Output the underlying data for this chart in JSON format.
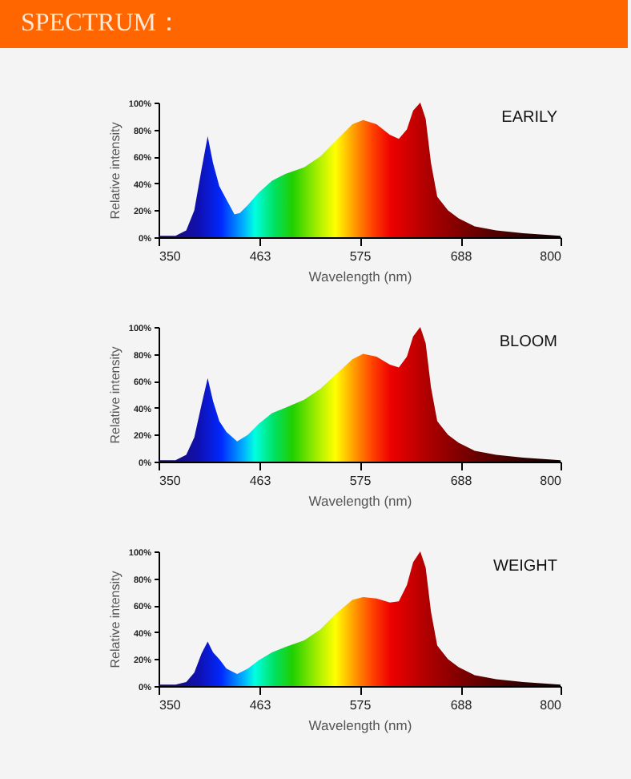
{
  "chart_data": [
    {
      "type": "area",
      "title": "SPECTRUM：",
      "xlabel": "Wavelength (nm)",
      "ylabel": "Relative intensity",
      "xlim": [
        350,
        800
      ],
      "ylim": [
        0,
        100
      ],
      "xticks": [
        350,
        463,
        575,
        688,
        800
      ],
      "yticks": [
        {
          "value": 0,
          "label": "0%"
        },
        {
          "value": 20,
          "label": "20%"
        },
        {
          "value": 40,
          "label": "40%"
        },
        {
          "value": 60,
          "label": "60%"
        },
        {
          "value": 80,
          "label": "80%"
        },
        {
          "value": 100,
          "label": "100%"
        }
      ],
      "grid": false,
      "x": [
        350,
        369,
        381,
        390,
        398,
        405,
        411,
        418,
        426,
        435,
        441,
        450,
        462,
        477,
        492,
        513,
        531,
        549,
        567,
        579,
        594,
        609,
        619,
        628,
        635,
        643,
        649,
        655,
        662,
        674,
        686,
        704,
        728,
        758,
        800
      ],
      "series": [
        {
          "name": "EARILY",
          "values": [
            1,
            1,
            5,
            20,
            50,
            75,
            55,
            38,
            28,
            17,
            18,
            24,
            33,
            42,
            47,
            52,
            60,
            72,
            84,
            87,
            84,
            76,
            73,
            80,
            94,
            100,
            88,
            55,
            30,
            20,
            14,
            8,
            5,
            3,
            1
          ]
        }
      ]
    },
    {
      "type": "area",
      "xlabel": "Wavelength (nm)",
      "ylabel": "Relative intensity",
      "xlim": [
        350,
        800
      ],
      "ylim": [
        0,
        100
      ],
      "xticks": [
        350,
        463,
        575,
        688,
        800
      ],
      "yticks": [
        {
          "value": 0,
          "label": "0%"
        },
        {
          "value": 20,
          "label": "20%"
        },
        {
          "value": 40,
          "label": "40%"
        },
        {
          "value": 60,
          "label": "60%"
        },
        {
          "value": 80,
          "label": "80%"
        },
        {
          "value": 100,
          "label": "100%"
        }
      ],
      "grid": false,
      "x": [
        350,
        369,
        381,
        390,
        398,
        405,
        411,
        418,
        426,
        438,
        450,
        462,
        477,
        492,
        513,
        531,
        549,
        567,
        579,
        594,
        609,
        619,
        628,
        635,
        643,
        649,
        655,
        662,
        674,
        686,
        704,
        728,
        758,
        800
      ],
      "series": [
        {
          "name": "BLOOM",
          "values": [
            1,
            1,
            5,
            18,
            42,
            62,
            45,
            30,
            22,
            15,
            20,
            28,
            36,
            40,
            46,
            54,
            65,
            76,
            80,
            78,
            72,
            70,
            78,
            93,
            100,
            88,
            55,
            30,
            20,
            14,
            8,
            5,
            3,
            1
          ]
        }
      ]
    },
    {
      "type": "area",
      "xlabel": "Wavelength (nm)",
      "ylabel": "Relative intensity",
      "xlim": [
        350,
        800
      ],
      "ylim": [
        0,
        100
      ],
      "xticks": [
        350,
        463,
        575,
        688,
        800
      ],
      "yticks": [
        {
          "value": 0,
          "label": "0%"
        },
        {
          "value": 20,
          "label": "20%"
        },
        {
          "value": 40,
          "label": "40%"
        },
        {
          "value": 60,
          "label": "60%"
        },
        {
          "value": 80,
          "label": "80%"
        },
        {
          "value": 100,
          "label": "100%"
        }
      ],
      "grid": false,
      "x": [
        350,
        369,
        381,
        390,
        398,
        405,
        411,
        418,
        426,
        438,
        450,
        462,
        477,
        492,
        513,
        531,
        549,
        567,
        579,
        594,
        609,
        619,
        628,
        635,
        643,
        649,
        655,
        662,
        674,
        686,
        704,
        728,
        758,
        800
      ],
      "series": [
        {
          "name": "WEIGHT",
          "values": [
            1,
            1,
            3,
            10,
            24,
            33,
            25,
            20,
            13,
            9,
            13,
            19,
            25,
            29,
            34,
            42,
            54,
            64,
            66,
            65,
            62,
            63,
            75,
            92,
            100,
            88,
            55,
            30,
            20,
            14,
            8,
            5,
            3,
            1
          ]
        }
      ]
    }
  ]
}
